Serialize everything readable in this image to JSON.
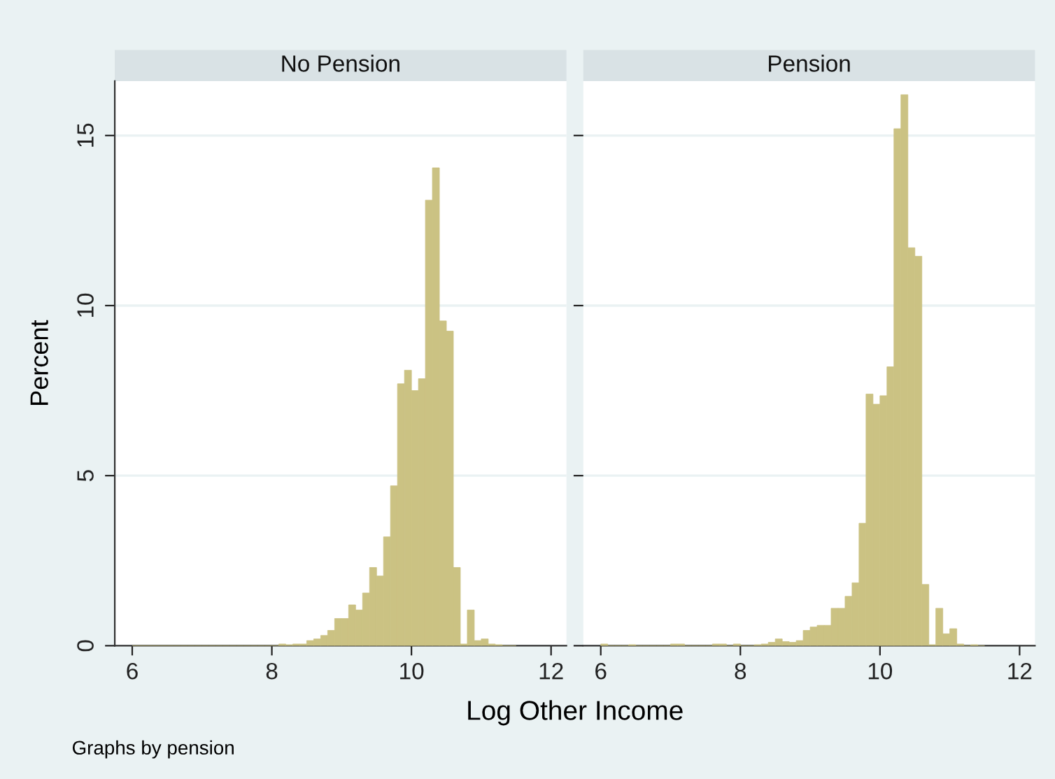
{
  "chart_data": [
    {
      "type": "histogram",
      "title": "No Pension",
      "ylabel": "Percent",
      "xlabel": "Log Other Income",
      "annotations": [
        "Graphs by pension"
      ],
      "color": "#cbc283",
      "bins": [
        6.0,
        6.1,
        6.2,
        6.3,
        6.4,
        6.5,
        6.6,
        6.7,
        6.8,
        6.9,
        7.0,
        7.1,
        7.2,
        7.3,
        7.4,
        7.5,
        7.6,
        7.7,
        7.8,
        7.9,
        8.0,
        8.1,
        8.2,
        8.3,
        8.4,
        8.5,
        8.6,
        8.7,
        8.8,
        8.9,
        9.0,
        9.1,
        9.2,
        9.3,
        9.4,
        9.5,
        9.6,
        9.7,
        9.8,
        9.9,
        10.0,
        10.1,
        10.2,
        10.3,
        10.4,
        10.5,
        10.6,
        10.7,
        10.8,
        10.9,
        11.0,
        11.1,
        11.2,
        11.3,
        11.4,
        11.5
      ],
      "values": [
        0,
        0,
        0,
        0,
        0,
        0,
        0,
        0,
        0,
        0,
        0,
        0,
        0,
        0,
        0,
        0,
        0,
        0,
        0,
        0,
        0,
        0.05,
        0.03,
        0.05,
        0.05,
        0.15,
        0.2,
        0.3,
        0.45,
        0.8,
        0.8,
        1.2,
        1.05,
        1.55,
        2.3,
        2.05,
        3.2,
        4.7,
        7.7,
        8.1,
        7.5,
        7.85,
        13.1,
        14.05,
        9.55,
        9.25,
        2.3,
        0.05,
        1.05,
        0.15,
        0.2,
        0.05,
        0.03,
        0,
        0
      ],
      "xlim": [
        5.75,
        12.22
      ],
      "xticks": [
        6,
        8,
        10,
        12
      ],
      "ylim": [
        0,
        16.6
      ],
      "yticks": [
        0,
        5,
        10,
        15
      ],
      "grid": "y"
    },
    {
      "type": "histogram",
      "title": "Pension",
      "color": "#cbc283",
      "bins": [
        6.0,
        6.1,
        6.2,
        6.3,
        6.4,
        6.5,
        6.6,
        6.7,
        6.8,
        6.9,
        7.0,
        7.1,
        7.2,
        7.3,
        7.4,
        7.5,
        7.6,
        7.7,
        7.8,
        7.9,
        8.0,
        8.1,
        8.2,
        8.3,
        8.4,
        8.5,
        8.6,
        8.7,
        8.8,
        8.9,
        9.0,
        9.1,
        9.2,
        9.3,
        9.4,
        9.5,
        9.6,
        9.7,
        9.8,
        9.9,
        10.0,
        10.1,
        10.2,
        10.3,
        10.4,
        10.5,
        10.6,
        10.7,
        10.8,
        10.9,
        11.0,
        11.1,
        11.2,
        11.3,
        11.4,
        11.5
      ],
      "values": [
        0.05,
        0,
        0,
        0,
        0.03,
        0,
        0,
        0,
        0,
        0,
        0.05,
        0.05,
        0,
        0,
        0,
        0,
        0.05,
        0.05,
        0,
        0.05,
        0,
        0,
        0.03,
        0.05,
        0.1,
        0.2,
        0.12,
        0.1,
        0.15,
        0.45,
        0.55,
        0.6,
        0.6,
        1.1,
        1.1,
        1.45,
        1.85,
        3.6,
        7.4,
        7.1,
        7.35,
        8.2,
        15.2,
        16.2,
        11.7,
        11.45,
        1.8,
        0.03,
        1.1,
        0.35,
        0.5,
        0.05,
        0,
        0.03,
        0
      ],
      "xlim": [
        5.75,
        12.22
      ],
      "xticks": [
        6,
        8,
        10,
        12
      ],
      "ylim": [
        0,
        16.6
      ],
      "yticks": [
        0,
        5,
        10,
        15
      ],
      "grid": "y",
      "tick_labels": "x"
    }
  ]
}
